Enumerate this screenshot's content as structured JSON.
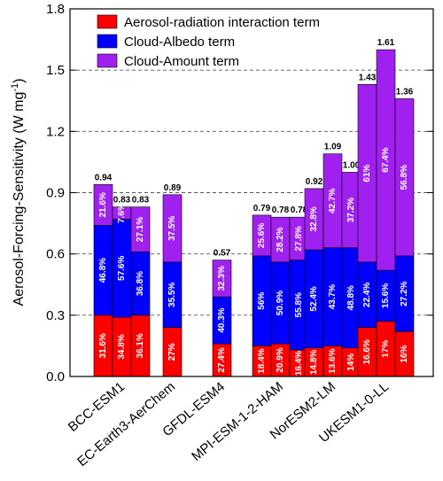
{
  "chart_data": {
    "type": "bar",
    "stacked": true,
    "ylabel": "Aerosol-Forcing-Sensitivity (W mg",
    "ylabel_sup": "-1",
    "ylabel_end": ")",
    "ylim": [
      0,
      1.8
    ],
    "yticks": [
      "0.0",
      "0.3",
      "0.6",
      "0.9",
      "1.2",
      "1.5",
      "1.8"
    ],
    "grid": "dashed horizontal",
    "legend_position": "top-left",
    "series": [
      {
        "name": "Aerosol-radiation interaction term",
        "color": "#ff0000"
      },
      {
        "name": "Cloud-Albedo term",
        "color": "#0000ff"
      },
      {
        "name": "Cloud-Amount term",
        "color": "#a020f0"
      }
    ],
    "models": [
      {
        "label": "BCC-ESM1",
        "bars": [
          {
            "total": "0.94",
            "ari": 0.3,
            "alb": 0.44,
            "amt": 0.2,
            "pct": [
              "31.6%",
              "46.8%",
              "21.6%"
            ]
          },
          {
            "total": "0.83",
            "ari": 0.29,
            "alb": 0.48,
            "amt": 0.06,
            "pct": [
              "34.8%",
              "57.6%",
              "7.6%"
            ]
          },
          {
            "total": "0.83",
            "ari": 0.3,
            "alb": 0.31,
            "amt": 0.22,
            "pct": [
              "36.1%",
              "36.8%",
              "27.1%"
            ]
          }
        ]
      },
      {
        "label": "EC-Earth3-AerChem",
        "bars": [
          {
            "total": "0.89",
            "ari": 0.24,
            "alb": 0.32,
            "amt": 0.33,
            "pct": [
              "27%",
              "35.5%",
              "37.5%"
            ]
          }
        ]
      },
      {
        "label": "GFDL-ESM4",
        "bars": [
          {
            "total": "0.57",
            "ari": 0.16,
            "alb": 0.23,
            "amt": 0.18,
            "pct": [
              "27.4%",
              "40.3%",
              "32.3%"
            ]
          }
        ]
      },
      {
        "label": "MPI-ESM-1-2-HAM",
        "bars": [
          {
            "total": "0.79",
            "ari": 0.15,
            "alb": 0.44,
            "amt": 0.2,
            "pct": [
              "18.4%",
              "56%",
              "25.6%"
            ]
          },
          {
            "total": "0.78",
            "ari": 0.16,
            "alb": 0.4,
            "amt": 0.22,
            "pct": [
              "20.9%",
              "50.9%",
              "28.2%"
            ]
          },
          {
            "total": "0.78",
            "ari": 0.13,
            "alb": 0.44,
            "amt": 0.21,
            "pct": [
              "16.4%",
              "55.8%",
              "27.8%"
            ]
          }
        ]
      },
      {
        "label": "NorESM2-LM",
        "bars": [
          {
            "total": "0.92",
            "ari": 0.14,
            "alb": 0.48,
            "amt": 0.3,
            "pct": [
              "14.8%",
              "52.4%",
              "32.8%"
            ]
          },
          {
            "total": "1.09",
            "ari": 0.15,
            "alb": 0.48,
            "amt": 0.46,
            "pct": [
              "13.6%",
              "43.7%",
              "42.7%"
            ]
          },
          {
            "total": "1.00",
            "ari": 0.14,
            "alb": 0.49,
            "amt": 0.37,
            "pct": [
              "14%",
              "48.8%",
              "37.2%"
            ]
          }
        ]
      },
      {
        "label": "UKESM1-0-LL",
        "bars": [
          {
            "total": "1.43",
            "ari": 0.24,
            "alb": 0.32,
            "amt": 0.87,
            "pct": [
              "16.6%",
              "22.4%",
              "61%"
            ]
          },
          {
            "total": "1.61",
            "ari": 0.27,
            "alb": 0.25,
            "amt": 1.08,
            "pct": [
              "17%",
              "15.6%",
              "67.4%"
            ]
          },
          {
            "total": "1.36",
            "ari": 0.22,
            "alb": 0.37,
            "amt": 0.77,
            "pct": [
              "16%",
              "27.2%",
              "56.8%"
            ]
          }
        ]
      }
    ]
  }
}
